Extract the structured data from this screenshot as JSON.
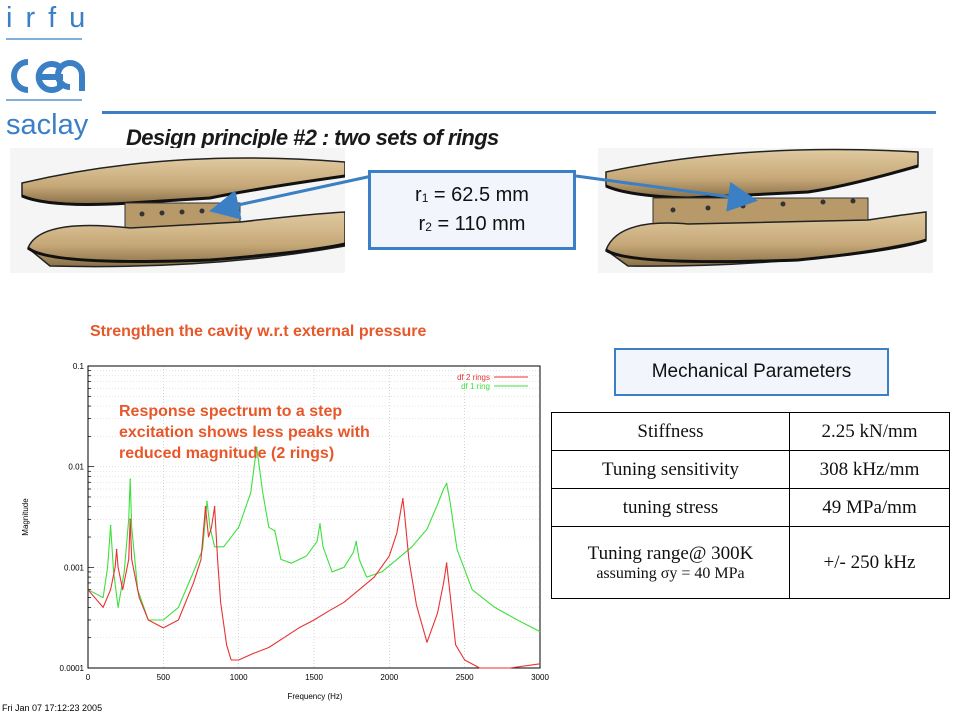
{
  "logo": {
    "letters": "irfu",
    "brand": "cea",
    "site": "saclay"
  },
  "colors": {
    "brand_blue": "#3b7fc4",
    "note_red": "#e8572a",
    "cavity": "#c6a878",
    "series_2rings": "#e83232",
    "series_1ring": "#3ee03e"
  },
  "title": "Design principle #2 : two sets of rings",
  "radii": {
    "r1_sym": "r",
    "r1_sub": "1",
    "r1_val": " = 62.5 mm",
    "r2_sym": "r",
    "r2_sub": "2",
    "r2_val": " = 110 mm"
  },
  "notes": {
    "strengthen": "Strengthen the cavity w.r.t external pressure",
    "response_l1": "Response spectrum to a step",
    "response_l2": "excitation shows less peaks with",
    "response_l3": "reduced magnitude (2 rings)"
  },
  "mechanical": {
    "heading": "Mechanical Parameters",
    "rows": [
      {
        "label": "Stiffness",
        "value": "2.25 kN/mm"
      },
      {
        "label": "Tuning sensitivity",
        "value": "308 kHz/mm"
      },
      {
        "label": "tuning stress",
        "value": "49 MPa/mm"
      },
      {
        "label": "Tuning range@ 300K",
        "note_pre": "assuming ",
        "note_sym": "σy",
        "note_post": " = 40 MPa",
        "value": "+/- 250 kHz"
      }
    ]
  },
  "chart_data": {
    "type": "line",
    "title": "",
    "xlabel": "Frequency (Hz)",
    "ylabel": "Magnitude",
    "xlim": [
      0,
      3000
    ],
    "ylim": [
      0.0001,
      0.1
    ],
    "yscale": "log",
    "grid": true,
    "legend_position": "top-right",
    "x_ticks": [
      "0",
      "500",
      "1000",
      "1500",
      "2000",
      "2500",
      "3000"
    ],
    "y_ticks": [
      "0.0001",
      "0.001",
      "0.01",
      "0.1"
    ],
    "series": [
      {
        "name": "df 2 rings",
        "color": "#e83232",
        "peaks": [
          {
            "f": 190,
            "mag": 0.0015
          },
          {
            "f": 280,
            "mag": 0.003
          },
          {
            "f": 780,
            "mag": 0.004
          },
          {
            "f": 840,
            "mag": 0.004
          },
          {
            "f": 2090,
            "mag": 0.0048
          },
          {
            "f": 2380,
            "mag": 0.0011
          }
        ],
        "x": [
          0,
          100,
          150,
          180,
          190,
          200,
          230,
          270,
          280,
          290,
          340,
          400,
          500,
          600,
          700,
          750,
          780,
          800,
          820,
          840,
          860,
          880,
          920,
          950,
          1000,
          1100,
          1200,
          1300,
          1400,
          1500,
          1600,
          1700,
          1800,
          1900,
          2000,
          2050,
          2080,
          2090,
          2100,
          2130,
          2180,
          2250,
          2320,
          2360,
          2380,
          2400,
          2440,
          2500,
          2600,
          2800,
          3000
        ],
        "y": [
          0.0006,
          0.0004,
          0.0006,
          0.001,
          0.0015,
          0.001,
          0.0006,
          0.0012,
          0.003,
          0.0012,
          0.0005,
          0.0003,
          0.00025,
          0.0003,
          0.0007,
          0.0012,
          0.004,
          0.002,
          0.0025,
          0.004,
          0.0012,
          0.00045,
          0.00017,
          0.00012,
          0.00012,
          0.00014,
          0.00016,
          0.0002,
          0.00025,
          0.0003,
          0.00037,
          0.00045,
          0.0006,
          0.0008,
          0.0013,
          0.0022,
          0.004,
          0.0048,
          0.0035,
          0.0012,
          0.00042,
          0.00018,
          0.00035,
          0.0007,
          0.0011,
          0.0006,
          0.00017,
          0.00012,
          0.0001,
          0.0001,
          0.00011
        ]
      },
      {
        "name": "df 1 ring",
        "color": "#3ee03e",
        "peaks": [
          {
            "f": 150,
            "mag": 0.0026
          },
          {
            "f": 280,
            "mag": 0.0075
          },
          {
            "f": 790,
            "mag": 0.0045
          },
          {
            "f": 1120,
            "mag": 0.0155
          },
          {
            "f": 1240,
            "mag": 0.0023
          },
          {
            "f": 1540,
            "mag": 0.0027
          },
          {
            "f": 1780,
            "mag": 0.0018
          },
          {
            "f": 2380,
            "mag": 0.0068
          }
        ],
        "x": [
          0,
          100,
          130,
          150,
          170,
          200,
          240,
          270,
          280,
          290,
          330,
          400,
          500,
          600,
          700,
          760,
          790,
          810,
          840,
          900,
          1000,
          1080,
          1120,
          1160,
          1200,
          1240,
          1280,
          1350,
          1450,
          1520,
          1540,
          1560,
          1620,
          1700,
          1760,
          1780,
          1800,
          1850,
          1950,
          2050,
          2150,
          2250,
          2320,
          2360,
          2380,
          2400,
          2450,
          2550,
          2700,
          2850,
          3000
        ],
        "y": [
          0.0006,
          0.0005,
          0.001,
          0.0026,
          0.0009,
          0.0004,
          0.0009,
          0.003,
          0.0075,
          0.0025,
          0.0006,
          0.0003,
          0.0003,
          0.0004,
          0.0009,
          0.0015,
          0.0045,
          0.0025,
          0.0016,
          0.0016,
          0.0025,
          0.0055,
          0.0155,
          0.0055,
          0.0025,
          0.0023,
          0.0012,
          0.0011,
          0.0013,
          0.0018,
          0.0027,
          0.0016,
          0.0009,
          0.001,
          0.0014,
          0.0018,
          0.0012,
          0.0008,
          0.0009,
          0.0012,
          0.0016,
          0.0024,
          0.0042,
          0.006,
          0.0068,
          0.0048,
          0.0015,
          0.0006,
          0.0004,
          0.0003,
          0.00023
        ]
      }
    ],
    "timestamp": "Fri Jan 07 17:12:23 2005"
  }
}
